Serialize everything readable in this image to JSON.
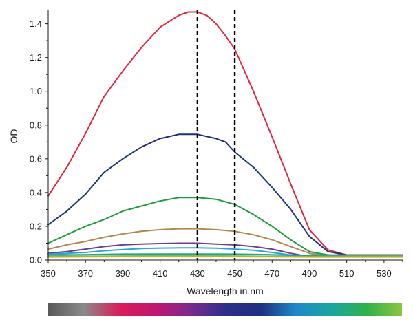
{
  "chart_data": {
    "type": "line",
    "xlabel": "Wavelength in nm",
    "ylabel": "OD",
    "xlim": [
      350,
      540
    ],
    "ylim": [
      0,
      1.48
    ],
    "x_ticks": [
      "350",
      "370",
      "390",
      "410",
      "430",
      "450",
      "470",
      "490",
      "510",
      "530"
    ],
    "y_ticks": [
      "0.0",
      "0.2",
      "0.4",
      "0.6",
      "0.8",
      "1.0",
      "1.2",
      "1.4"
    ],
    "grid": false,
    "markers": [
      430,
      450
    ],
    "spectrum_bar": [
      "#5a5a5a",
      "#8a8a8a",
      "#d81e5b",
      "#c2156e",
      "#7d2a8e",
      "#2e2e8c",
      "#1f2f80",
      "#1e88c8",
      "#1aa6a0",
      "#2fb04a",
      "#8cc63f"
    ],
    "series": [
      {
        "color": "#e3263a",
        "x": [
          350,
          360,
          370,
          380,
          390,
          400,
          410,
          420,
          425,
          430,
          435,
          440,
          445,
          450,
          460,
          470,
          480,
          490,
          500,
          510,
          520,
          530,
          540
        ],
        "y": [
          0.38,
          0.55,
          0.75,
          0.97,
          1.12,
          1.26,
          1.38,
          1.45,
          1.47,
          1.47,
          1.45,
          1.4,
          1.33,
          1.25,
          1.0,
          0.73,
          0.45,
          0.18,
          0.06,
          0.03,
          0.03,
          0.03,
          0.03
        ]
      },
      {
        "color": "#1f2f80",
        "x": [
          350,
          360,
          370,
          380,
          390,
          400,
          410,
          420,
          430,
          440,
          445,
          450,
          460,
          470,
          480,
          490,
          500,
          510,
          520,
          530,
          540
        ],
        "y": [
          0.21,
          0.29,
          0.39,
          0.52,
          0.6,
          0.67,
          0.72,
          0.745,
          0.745,
          0.72,
          0.7,
          0.64,
          0.55,
          0.43,
          0.3,
          0.14,
          0.05,
          0.03,
          0.03,
          0.03,
          0.03
        ]
      },
      {
        "color": "#1f9a3e",
        "x": [
          350,
          360,
          370,
          380,
          390,
          400,
          410,
          420,
          430,
          440,
          450,
          460,
          470,
          480,
          490,
          500,
          510,
          520,
          530,
          540
        ],
        "y": [
          0.1,
          0.15,
          0.2,
          0.24,
          0.29,
          0.32,
          0.35,
          0.37,
          0.37,
          0.36,
          0.33,
          0.27,
          0.2,
          0.12,
          0.05,
          0.03,
          0.03,
          0.03,
          0.03,
          0.03
        ]
      },
      {
        "color": "#b08850",
        "x": [
          350,
          360,
          370,
          380,
          390,
          400,
          410,
          420,
          430,
          440,
          450,
          460,
          470,
          480,
          490,
          500,
          510,
          520,
          530,
          540
        ],
        "y": [
          0.065,
          0.09,
          0.11,
          0.135,
          0.155,
          0.17,
          0.18,
          0.185,
          0.185,
          0.18,
          0.17,
          0.15,
          0.12,
          0.08,
          0.04,
          0.025,
          0.025,
          0.025,
          0.025,
          0.025
        ]
      },
      {
        "color": "#6b3f91",
        "x": [
          350,
          360,
          370,
          380,
          390,
          400,
          410,
          420,
          430,
          440,
          450,
          460,
          470,
          480,
          490,
          500,
          510,
          520,
          530,
          540
        ],
        "y": [
          0.04,
          0.05,
          0.065,
          0.08,
          0.09,
          0.095,
          0.098,
          0.1,
          0.1,
          0.095,
          0.09,
          0.08,
          0.065,
          0.04,
          0.02,
          0.02,
          0.02,
          0.02,
          0.02,
          0.02
        ]
      },
      {
        "color": "#2aa7d8",
        "x": [
          350,
          360,
          370,
          380,
          390,
          400,
          410,
          420,
          430,
          440,
          450,
          460,
          470,
          480,
          490,
          500,
          510,
          520,
          530,
          540
        ],
        "y": [
          0.035,
          0.04,
          0.045,
          0.055,
          0.062,
          0.068,
          0.071,
          0.072,
          0.072,
          0.07,
          0.065,
          0.058,
          0.045,
          0.03,
          0.02,
          0.02,
          0.02,
          0.02,
          0.02,
          0.02
        ]
      },
      {
        "color": "#1aa6a0",
        "x": [
          350,
          370,
          390,
          410,
          430,
          450,
          470,
          490,
          510,
          530,
          540
        ],
        "y": [
          0.03,
          0.032,
          0.035,
          0.036,
          0.036,
          0.035,
          0.032,
          0.025,
          0.022,
          0.022,
          0.022
        ]
      },
      {
        "color": "#8cb83a",
        "x": [
          350,
          370,
          390,
          410,
          430,
          450,
          470,
          490,
          510,
          530,
          540
        ],
        "y": [
          0.022,
          0.023,
          0.024,
          0.025,
          0.025,
          0.024,
          0.022,
          0.02,
          0.02,
          0.02,
          0.02
        ]
      },
      {
        "color": "#c9b02a",
        "x": [
          350,
          370,
          390,
          410,
          430,
          450,
          470,
          490,
          510,
          530,
          540
        ],
        "y": [
          0.018,
          0.019,
          0.02,
          0.02,
          0.02,
          0.02,
          0.019,
          0.018,
          0.018,
          0.018,
          0.018
        ]
      }
    ]
  }
}
